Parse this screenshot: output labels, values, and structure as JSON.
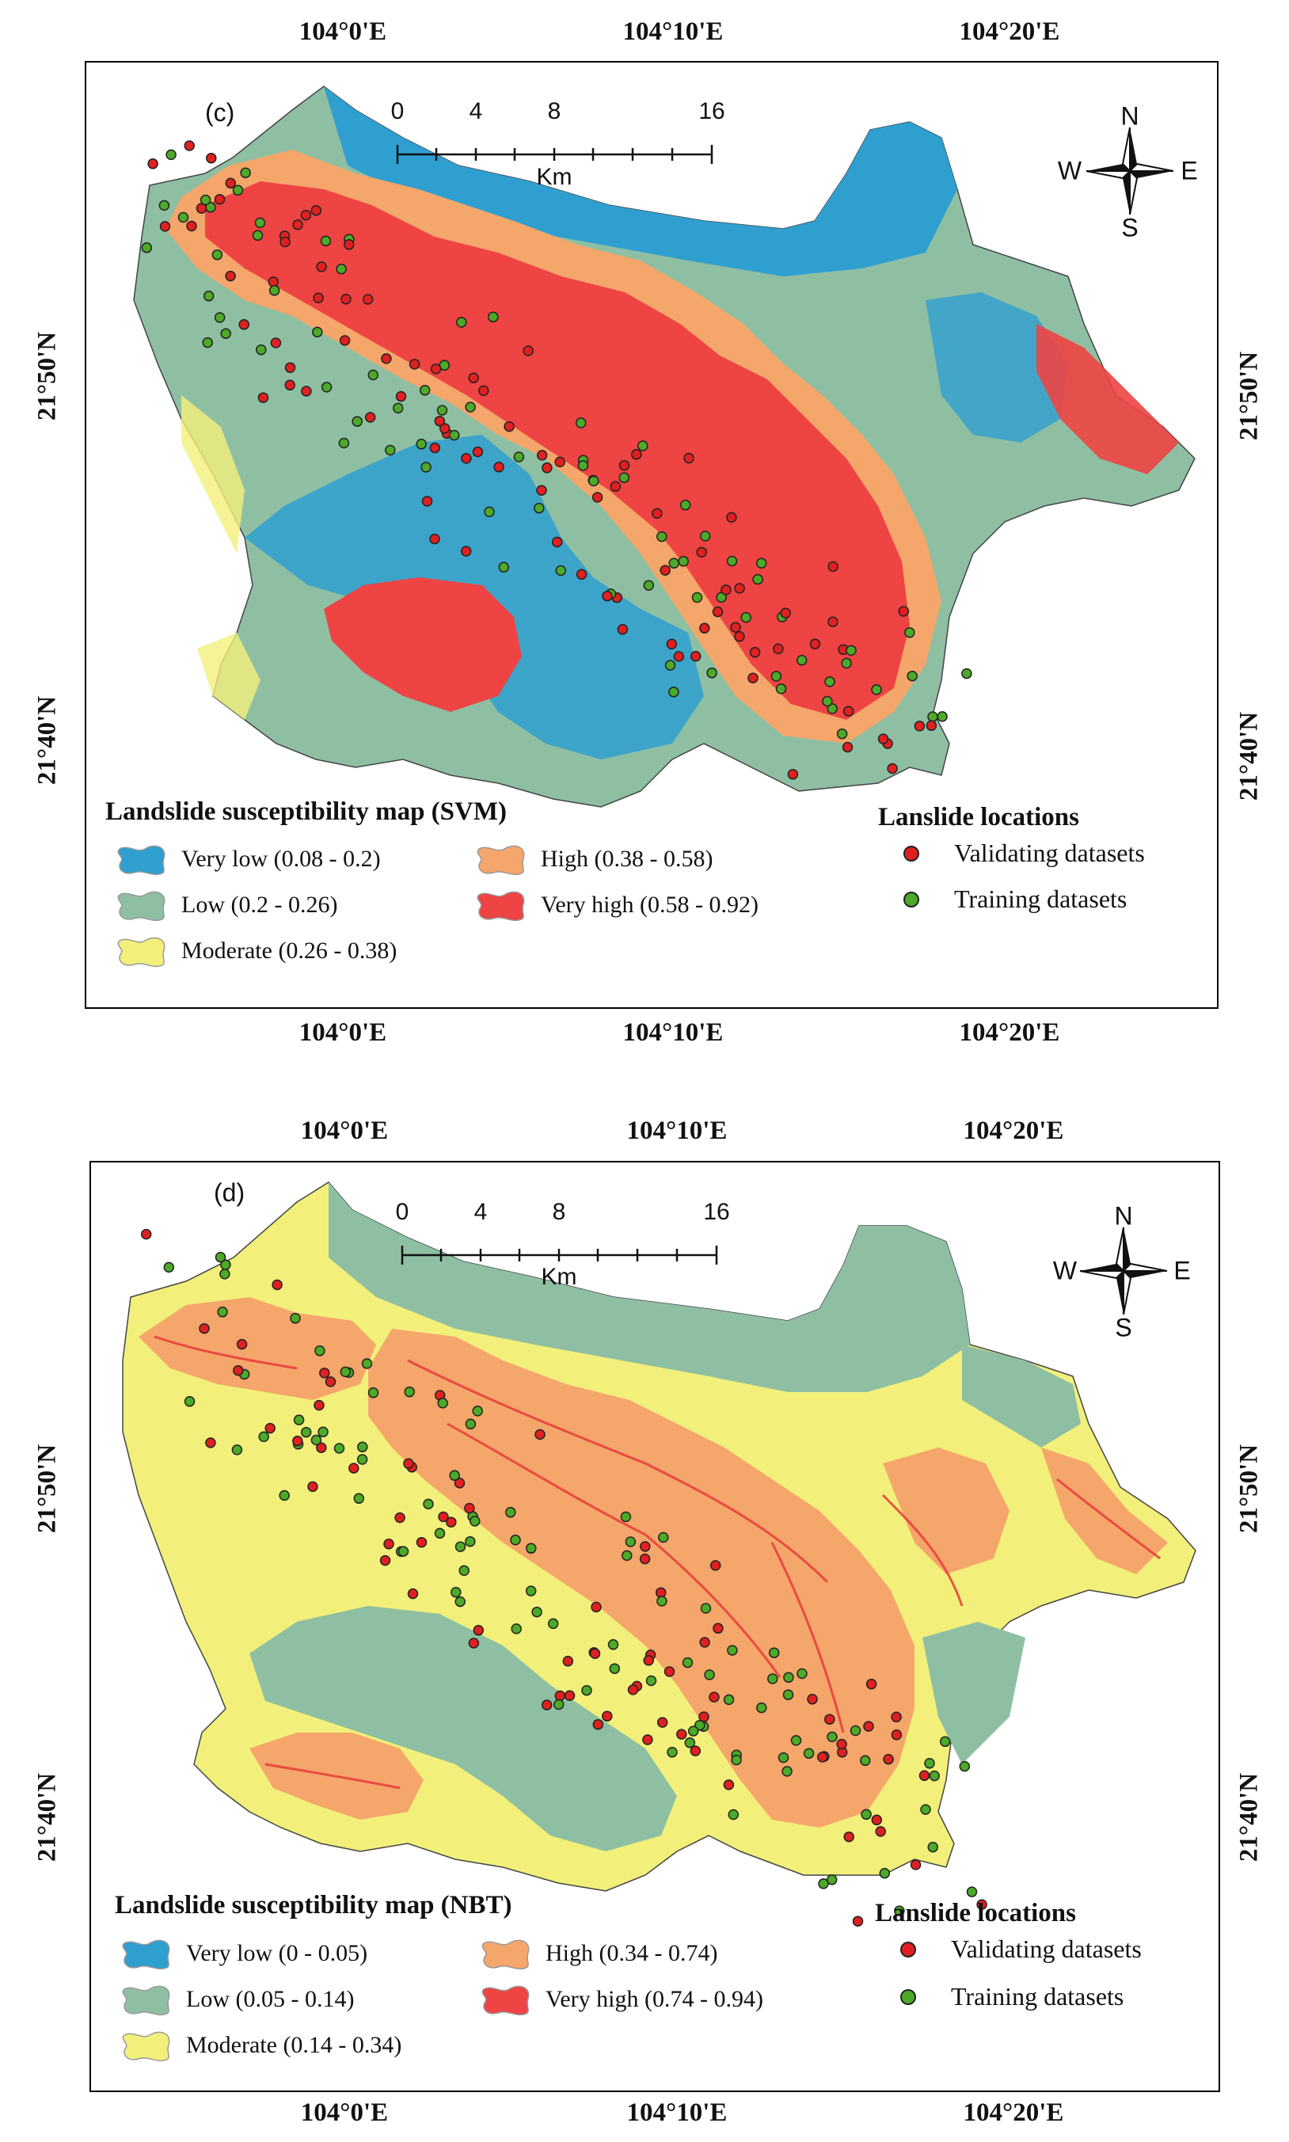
{
  "panels": [
    {
      "letter": "(c)",
      "lon_labels": [
        "104°0'E",
        "104°10'E",
        "104°20'E"
      ],
      "lat_labels": [
        "21°50'N",
        "21°40'N"
      ],
      "scale_labels": [
        "0",
        "4",
        "8",
        "16"
      ],
      "scale_unit": "Km",
      "compass": {
        "n": "N",
        "s": "S",
        "e": "E",
        "w": "W"
      },
      "legend_title": "Landslide susceptibility map (SVM)",
      "classes": [
        {
          "label": "Very low (0.08 - 0.2)",
          "color": "#2f9fd0"
        },
        {
          "label": "Low (0.2 - 0.26)",
          "color": "#8fbfa3"
        },
        {
          "label": "Moderate (0.26 - 0.38)",
          "color": "#f2f07a"
        },
        {
          "label": "High (0.38 - 0.58)",
          "color": "#f5a66b"
        },
        {
          "label": "Very high (0.58 - 0.92)",
          "color": "#ee4444"
        }
      ],
      "locations_title": "Lanslide locations",
      "locations": [
        {
          "label": "Validating datasets",
          "color": "#e02020"
        },
        {
          "label": "Training datasets",
          "color": "#4caa28"
        }
      ]
    },
    {
      "letter": "(d)",
      "lon_labels": [
        "104°0'E",
        "104°10'E",
        "104°20'E"
      ],
      "lat_labels": [
        "21°50'N",
        "21°40'N"
      ],
      "scale_labels": [
        "0",
        "4",
        "8",
        "16"
      ],
      "scale_unit": "Km",
      "compass": {
        "n": "N",
        "s": "S",
        "e": "E",
        "w": "W"
      },
      "legend_title": "Landslide susceptibility map (NBT)",
      "classes": [
        {
          "label": "Very low (0 - 0.05)",
          "color": "#2f9fd0"
        },
        {
          "label": "Low (0.05 - 0.14)",
          "color": "#8fbfa3"
        },
        {
          "label": "Moderate (0.14 - 0.34)",
          "color": "#f2f07a"
        },
        {
          "label": "High (0.34 - 0.74)",
          "color": "#f5a66b"
        },
        {
          "label": "Very high (0.74 - 0.94)",
          "color": "#ee4444"
        }
      ],
      "locations_title": "Lanslide locations",
      "locations": [
        {
          "label": "Validating datasets",
          "color": "#e02020"
        },
        {
          "label": "Training datasets",
          "color": "#4caa28"
        }
      ]
    }
  ]
}
